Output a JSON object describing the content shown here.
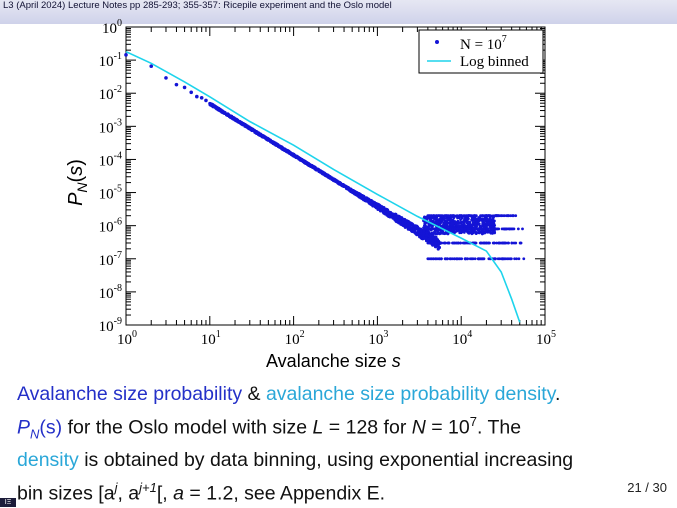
{
  "header": {
    "title": "L3 (April 2024) Lecture Notes pp 285-293; 355-357: Ricepile experiment and the Oslo model"
  },
  "chart_data": {
    "type": "scatter",
    "x_scale": "log",
    "y_scale": "log",
    "xlim": [
      1,
      100000
    ],
    "ylim": [
      1e-09,
      1
    ],
    "xlabel_text": "Avalanche size ",
    "xlabel_var": "s",
    "ylabel": "P_N(s)",
    "x_ticks": [
      {
        "base": "10",
        "exp": "0"
      },
      {
        "base": "10",
        "exp": "1"
      },
      {
        "base": "10",
        "exp": "2"
      },
      {
        "base": "10",
        "exp": "3"
      },
      {
        "base": "10",
        "exp": "4"
      },
      {
        "base": "10",
        "exp": "5"
      }
    ],
    "y_ticks": [
      {
        "base": "10",
        "exp": "0"
      },
      {
        "base": "10",
        "exp": "-1"
      },
      {
        "base": "10",
        "exp": "-2"
      },
      {
        "base": "10",
        "exp": "-3"
      },
      {
        "base": "10",
        "exp": "-4"
      },
      {
        "base": "10",
        "exp": "-5"
      },
      {
        "base": "10",
        "exp": "-6"
      },
      {
        "base": "10",
        "exp": "-7"
      },
      {
        "base": "10",
        "exp": "-8"
      },
      {
        "base": "10",
        "exp": "-9"
      }
    ],
    "legend_position": "top-right",
    "series": [
      {
        "name": "N = 10^7",
        "legend_base": "N = 10",
        "legend_exp": "7",
        "kind": "points",
        "color": "#1414d6",
        "power_law_exponent": -1.55,
        "approx_points": [
          [
            1,
            0.17
          ],
          [
            10,
            0.0055
          ],
          [
            100,
            0.00015
          ],
          [
            1000,
            4.5e-06
          ],
          [
            5000,
            1.3e-06
          ]
        ],
        "plateau_levels": [
          2e-06,
          8e-07,
          3e-07,
          1e-07
        ],
        "plateau_x_range": [
          4000,
          60000
        ]
      },
      {
        "name": "Log binned",
        "kind": "line",
        "color": "#1ed4ec",
        "points": [
          [
            1,
            0.18
          ],
          [
            2,
            0.08
          ],
          [
            3,
            0.045
          ],
          [
            5,
            0.022
          ],
          [
            10,
            0.0078
          ],
          [
            30,
            0.0014
          ],
          [
            100,
            0.00027
          ],
          [
            300,
            5e-05
          ],
          [
            1000,
            8.8e-06
          ],
          [
            3000,
            1.9e-06
          ],
          [
            10000,
            4.2e-07
          ],
          [
            20000,
            1.7e-07
          ],
          [
            30000,
            4e-08
          ],
          [
            40000,
            6e-09
          ],
          [
            50000,
            1.2e-09
          ]
        ]
      }
    ]
  },
  "caption": {
    "line1_a": "Avalanche size probability",
    "line1_b": " & ",
    "line1_c": "avalanche size probability density",
    "line1_d": ".",
    "line2_a": "P",
    "line2_sub": "N",
    "line2_b": "(s)",
    "line2_c": " for the Oslo model with size ",
    "line2_d": "L",
    "line2_e": " = 128 for ",
    "line2_f": "N",
    "line2_g": " = 10",
    "line2_sup": "7",
    "line2_h": ". The",
    "line3_a": "density",
    "line3_b": " is obtained by data binning, using exponential increasing",
    "line4_a": "bin sizes ",
    "line4_b": "[a",
    "line4_sup1": "j",
    "line4_c": ", a",
    "line4_sup2": "j+1",
    "line4_d": "[",
    "line4_e": ", ",
    "line4_f": "a",
    "line4_g": " = 1.2, see Appendix E."
  },
  "footer": {
    "logo_text": "ΙΞ",
    "page": "21 / 30"
  }
}
